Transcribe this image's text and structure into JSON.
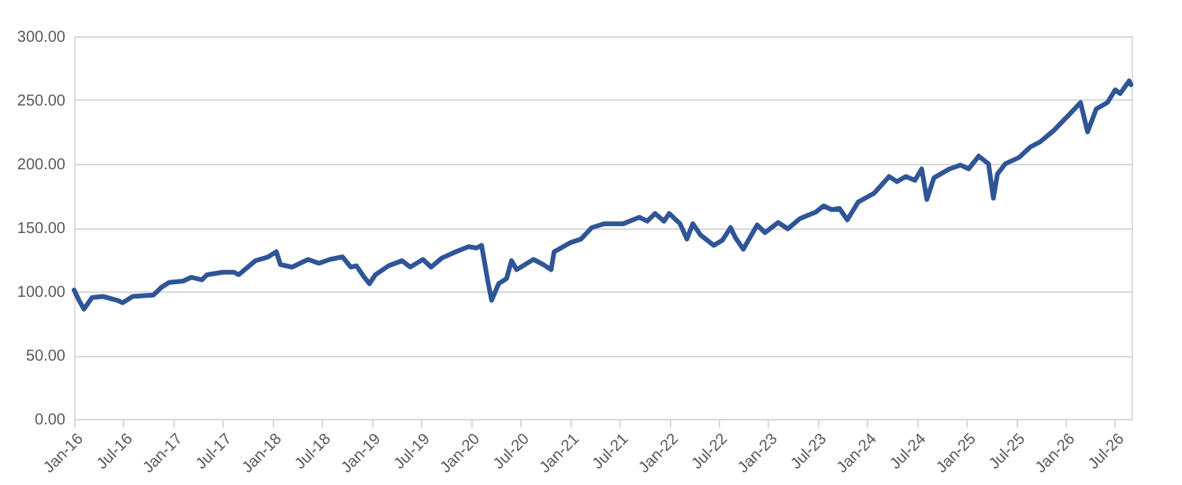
{
  "chart_data": {
    "type": "line",
    "grid": "y",
    "line_style": "solid",
    "marker": "none",
    "xlim": [
      "2016-01-01",
      "2026-08-31"
    ],
    "xticks": [
      {
        "value": "2016-01-01",
        "label": "Jan-16"
      },
      {
        "value": "2016-07-01",
        "label": "Jul-16"
      },
      {
        "value": "2017-01-01",
        "label": "Jan-17"
      },
      {
        "value": "2017-07-01",
        "label": "Jul-17"
      },
      {
        "value": "2018-01-01",
        "label": "Jan-18"
      },
      {
        "value": "2018-07-01",
        "label": "Jul-18"
      },
      {
        "value": "2019-01-01",
        "label": "Jan-19"
      },
      {
        "value": "2019-07-01",
        "label": "Jul-19"
      },
      {
        "value": "2020-01-01",
        "label": "Jan-20"
      },
      {
        "value": "2020-07-01",
        "label": "Jul-20"
      },
      {
        "value": "2021-01-01",
        "label": "Jan-21"
      },
      {
        "value": "2021-07-01",
        "label": "Jul-21"
      },
      {
        "value": "2022-01-01",
        "label": "Jan-22"
      },
      {
        "value": "2022-07-01",
        "label": "Jul-22"
      },
      {
        "value": "2023-01-01",
        "label": "Jan-23"
      },
      {
        "value": "2023-07-01",
        "label": "Jul-23"
      },
      {
        "value": "2024-01-01",
        "label": "Jan-24"
      },
      {
        "value": "2024-07-01",
        "label": "Jul-24"
      },
      {
        "value": "2025-01-01",
        "label": "Jan-25"
      },
      {
        "value": "2025-07-01",
        "label": "Jul-25"
      },
      {
        "value": "2026-01-01",
        "label": "Jan-26"
      },
      {
        "value": "2026-07-01",
        "label": "Jul-26"
      }
    ],
    "ylim": [
      0,
      300
    ],
    "yticks": [
      {
        "value": 0,
        "label": "0.00"
      },
      {
        "value": 50,
        "label": "50.00"
      },
      {
        "value": 100,
        "label": "100.00"
      },
      {
        "value": 150,
        "label": "150.00"
      },
      {
        "value": 200,
        "label": "200.00"
      },
      {
        "value": 250,
        "label": "250.00"
      },
      {
        "value": 300,
        "label": "300.00"
      }
    ],
    "x": [
      "2016-01-01",
      "2016-01-19",
      "2016-02-06",
      "2016-03-07",
      "2016-04-16",
      "2016-06-07",
      "2016-06-28",
      "2016-08-04",
      "2016-10-19",
      "2016-11-17",
      "2016-12-16",
      "2017-02-06",
      "2017-03-07",
      "2017-04-16",
      "2017-05-05",
      "2017-07-02",
      "2017-08-11",
      "2017-08-29",
      "2017-10-30",
      "2017-12-16",
      "2018-01-15",
      "2018-01-30",
      "2018-03-14",
      "2018-05-12",
      "2018-06-21",
      "2018-07-31",
      "2018-09-16",
      "2018-10-16",
      "2018-11-06",
      "2018-12-05",
      "2018-12-24",
      "2019-01-15",
      "2019-03-04",
      "2019-04-23",
      "2019-05-23",
      "2019-07-09",
      "2019-08-08",
      "2019-09-16",
      "2019-10-27",
      "2019-12-24",
      "2020-01-23",
      "2020-02-10",
      "2020-03-04",
      "2020-03-18",
      "2020-04-13",
      "2020-05-12",
      "2020-05-30",
      "2020-06-18",
      "2020-08-19",
      "2020-09-24",
      "2020-10-23",
      "2020-11-03",
      "2021-01-01",
      "2021-02-10",
      "2021-03-22",
      "2021-05-08",
      "2021-07-16",
      "2021-09-13",
      "2021-10-12",
      "2021-11-10",
      "2021-12-13",
      "2022-01-01",
      "2022-02-10",
      "2022-03-07",
      "2022-03-29",
      "2022-04-27",
      "2022-06-14",
      "2022-07-16",
      "2022-08-15",
      "2022-09-02",
      "2022-10-01",
      "2022-11-21",
      "2022-12-20",
      "2023-02-06",
      "2023-03-14",
      "2023-04-27",
      "2023-06-24",
      "2023-07-24",
      "2023-08-22",
      "2023-09-20",
      "2023-10-19",
      "2023-11-28",
      "2024-01-26",
      "2024-03-21",
      "2024-04-19",
      "2024-05-22",
      "2024-06-24",
      "2024-07-19",
      "2024-08-07",
      "2024-09-02",
      "2024-10-30",
      "2024-12-09",
      "2025-01-08",
      "2025-02-14",
      "2025-03-22",
      "2025-04-09",
      "2025-04-24",
      "2025-05-23",
      "2025-07-13",
      "2025-08-22",
      "2025-09-27",
      "2025-11-17",
      "2026-01-15",
      "2026-02-24",
      "2026-03-22",
      "2026-04-23",
      "2026-06-03",
      "2026-07-02",
      "2026-07-20",
      "2026-08-22",
      "2026-08-29"
    ],
    "series": [
      {
        "color": "#2f5597",
        "values": [
          101,
          93,
          86,
          95,
          96,
          93,
          91,
          96,
          97,
          103,
          107,
          108,
          111,
          109,
          113,
          115,
          115,
          113,
          124,
          127,
          131,
          121,
          119,
          125,
          122,
          125,
          127,
          119,
          120,
          111,
          106,
          113,
          120,
          124,
          119,
          125,
          119,
          126,
          130,
          135,
          134,
          136,
          108,
          93,
          106,
          110,
          124,
          117,
          125,
          121,
          117,
          131,
          138,
          141,
          150,
          153,
          153,
          158,
          155,
          161,
          155,
          161,
          153,
          141,
          153,
          144,
          136,
          140,
          150,
          142,
          133,
          152,
          146,
          154,
          149,
          157,
          162,
          167,
          164,
          165,
          156,
          170,
          177,
          190,
          186,
          190,
          187,
          196,
          172,
          189,
          196,
          199,
          196,
          206,
          200,
          173,
          192,
          200,
          205,
          213,
          217,
          226,
          239,
          248,
          225,
          243,
          248,
          258,
          255,
          265,
          262
        ]
      }
    ]
  }
}
